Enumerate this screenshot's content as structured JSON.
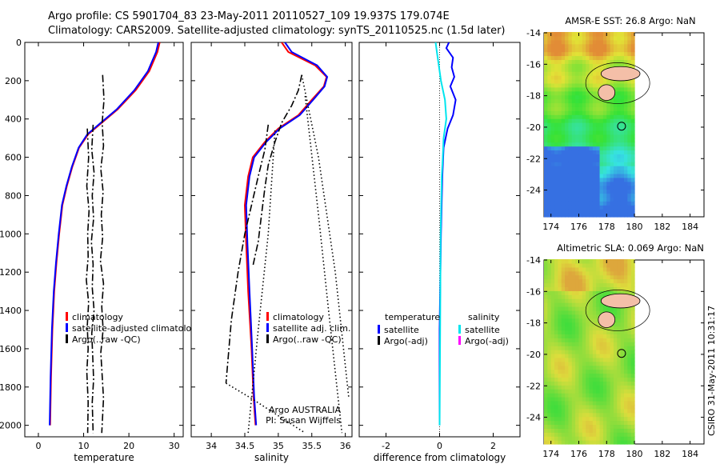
{
  "header": {
    "line1": "Argo profile: CS 5901704_83 23-May-2011 20110527_109 19.937S 179.074E",
    "line2": "Climatology: CARS2009. Satellite-adjusted climatology: synTS_20110525.nc (1.5d later)"
  },
  "chart_data": [
    {
      "type": "line",
      "panel": "temperature",
      "xlabel": "temperature",
      "xlim": [
        -3,
        32
      ],
      "ylim": [
        2060,
        0
      ],
      "xticks": [
        0,
        10,
        20,
        30
      ],
      "yticks": [
        0,
        200,
        400,
        600,
        800,
        1000,
        1200,
        1400,
        1600,
        1800,
        2000
      ],
      "legend": [
        "climatology",
        "satellite-adjusted climatology",
        "Argo(..raw -QC)"
      ],
      "series": [
        {
          "name": "climatology",
          "color": "#ff0000",
          "x": [
            26.8,
            26.3,
            24.5,
            21.5,
            17.5,
            14.0,
            11.0,
            9.0,
            7.5,
            6.3,
            5.3,
            4.6,
            4.0,
            3.5,
            3.1,
            2.8,
            2.6
          ],
          "y": [
            0,
            50,
            150,
            250,
            350,
            420,
            480,
            550,
            650,
            750,
            850,
            1000,
            1150,
            1300,
            1500,
            1750,
            2000
          ]
        },
        {
          "name": "satellite-adjusted climatology",
          "color": "#0000ff",
          "x": [
            26.5,
            26.0,
            24.2,
            21.2,
            17.3,
            13.8,
            10.8,
            8.9,
            7.4,
            6.2,
            5.2,
            4.5,
            3.9,
            3.4,
            3.0,
            2.7,
            2.5
          ],
          "y": [
            0,
            50,
            150,
            250,
            350,
            420,
            480,
            550,
            650,
            750,
            850,
            1000,
            1150,
            1300,
            1500,
            1750,
            2000
          ]
        },
        {
          "name": "Argo(..raw -QC)",
          "color": "#000000",
          "style": "dashdot",
          "x": [
            14.2,
            14.5,
            14.1,
            14.4,
            13.8,
            14.3,
            13.9,
            14.2,
            13.7,
            14.4,
            14.0,
            14.3,
            13.8,
            14.1,
            14.4,
            14.0
          ],
          "y": [
            170,
            300,
            420,
            540,
            660,
            780,
            900,
            1020,
            1140,
            1260,
            1380,
            1500,
            1620,
            1740,
            1860,
            2040
          ]
        },
        {
          "name": "Argo(..raw -QC)",
          "color": "#000000",
          "style": "dashdot",
          "x": [
            12.1,
            11.8,
            12.3,
            11.9,
            12.2,
            11.7,
            12.1,
            11.9,
            12.3,
            11.8,
            12.0,
            12.2,
            11.9,
            12.1
          ],
          "y": [
            430,
            560,
            680,
            800,
            920,
            1040,
            1160,
            1280,
            1400,
            1520,
            1640,
            1760,
            1880,
            2040
          ]
        },
        {
          "name": "Argo(..raw -QC)",
          "color": "#000000",
          "style": "dashdot",
          "x": [
            10.8,
            11.1,
            10.7,
            11.2,
            10.9,
            11.0,
            10.6,
            11.1,
            10.8,
            11.0,
            10.7,
            11.0,
            10.9
          ],
          "y": [
            450,
            600,
            750,
            880,
            1000,
            1120,
            1240,
            1360,
            1480,
            1600,
            1720,
            1880,
            2040
          ]
        }
      ]
    },
    {
      "type": "line",
      "panel": "salinity",
      "xlabel": "salinity",
      "xlim": [
        33.7,
        36.1
      ],
      "ylim": [
        2060,
        0
      ],
      "xticks": [
        34,
        34.5,
        35,
        35.5,
        36
      ],
      "legend": [
        "climatology",
        "satellite adj. clim.",
        "Argo(..raw -QC)"
      ],
      "annotation": [
        "Argo AUSTRALIA",
        "PI: Susan Wijffels"
      ],
      "series": [
        {
          "name": "climatology",
          "color": "#ff0000",
          "x": [
            35.05,
            35.15,
            35.55,
            35.72,
            35.68,
            35.5,
            35.3,
            35.0,
            34.8,
            34.62,
            34.55,
            34.5,
            34.52,
            34.55,
            34.6,
            34.63,
            34.66
          ],
          "y": [
            0,
            50,
            120,
            180,
            230,
            300,
            380,
            450,
            520,
            600,
            700,
            850,
            1050,
            1300,
            1600,
            1850,
            2000
          ]
        },
        {
          "name": "satellite adj. clim.",
          "color": "#0000ff",
          "x": [
            35.1,
            35.2,
            35.58,
            35.73,
            35.69,
            35.52,
            35.32,
            35.02,
            34.82,
            34.64,
            34.57,
            34.52,
            34.54,
            34.57,
            34.61,
            34.64,
            34.67
          ],
          "y": [
            0,
            50,
            120,
            180,
            230,
            300,
            380,
            450,
            520,
            600,
            700,
            850,
            1050,
            1300,
            1600,
            1850,
            2000
          ]
        },
        {
          "name": "Argo(..raw -QC)",
          "color": "#000000",
          "style": "dashdot",
          "x": [
            35.35,
            35.3,
            35.2,
            35.05,
            34.95,
            34.85,
            34.8,
            34.75,
            34.7,
            34.62
          ],
          "y": [
            170,
            250,
            330,
            420,
            520,
            640,
            760,
            900,
            1040,
            1170
          ]
        },
        {
          "name": "Argo(..raw -QC)",
          "color": "#000000",
          "style": "dashdot",
          "x": [
            34.85,
            34.8,
            34.7,
            34.6,
            34.5,
            34.4,
            34.3,
            34.22
          ],
          "y": [
            430,
            560,
            700,
            850,
            1000,
            1200,
            1450,
            1780
          ]
        },
        {
          "name": "Argo(..raw -QC)",
          "color": "#000000",
          "style": "dotted",
          "x": [
            35.35,
            35.6,
            35.85,
            36.05
          ],
          "y": [
            170,
            600,
            1200,
            1850
          ]
        },
        {
          "name": "Argo(..raw -QC)",
          "color": "#000000",
          "style": "dotted",
          "x": [
            35.4,
            35.6,
            35.75,
            35.95
          ],
          "y": [
            280,
            900,
            1400,
            2040
          ]
        },
        {
          "name": "Argo(..raw -QC)",
          "color": "#000000",
          "style": "dotted",
          "x": [
            34.22,
            34.6,
            35.0,
            35.4
          ],
          "y": [
            1780,
            1860,
            1950,
            2040
          ]
        },
        {
          "name": "Argo(..raw -QC)",
          "color": "#000000",
          "style": "dotted",
          "x": [
            34.95,
            34.85,
            34.7,
            34.55
          ],
          "y": [
            460,
            1000,
            1500,
            2040
          ]
        }
      ]
    },
    {
      "type": "line",
      "panel": "difference",
      "xlabel": "difference from climatology",
      "xlim": [
        -3,
        3
      ],
      "ylim": [
        2060,
        0
      ],
      "xticks": [
        -2,
        0,
        2
      ],
      "legend_left_title": "temperature",
      "legend_right_title": "salinity",
      "legend": [
        "satellite",
        "Argo(-adj)",
        "satellite",
        "Argo(-adj)"
      ],
      "series": [
        {
          "name": "satellite",
          "quantity": "temperature",
          "color": "#0000ff",
          "x": [
            0.35,
            0.25,
            0.5,
            0.45,
            0.55,
            0.4,
            0.6,
            0.5,
            0.3,
            0.15,
            0.1,
            0.05,
            0.0,
            0.0
          ],
          "y": [
            0,
            30,
            80,
            130,
            180,
            230,
            300,
            380,
            450,
            550,
            700,
            1000,
            1500,
            2000
          ]
        },
        {
          "name": "satellite",
          "quantity": "salinity",
          "color": "#00e5ee",
          "x": [
            -0.15,
            -0.1,
            -0.05,
            0.05,
            0.2,
            0.25,
            0.15,
            0.12,
            0.08,
            0.06,
            0.04,
            0.02,
            0.0
          ],
          "y": [
            0,
            50,
            100,
            200,
            300,
            400,
            500,
            600,
            700,
            850,
            1000,
            1500,
            2000
          ]
        }
      ]
    },
    {
      "type": "heatmap",
      "panel": "map-sst",
      "title": "AMSR-E SST: 26.8 Argo: NaN",
      "xlim": [
        173.5,
        185
      ],
      "ylim": [
        -25.7,
        -14
      ],
      "xticks": [
        174,
        176,
        178,
        180,
        182,
        184
      ],
      "yticks": [
        -14,
        -16,
        -18,
        -20,
        -22,
        -24
      ],
      "data_extent_lon_max": 180,
      "float_position": {
        "lon": 179.074,
        "lat": -19.937
      }
    },
    {
      "type": "heatmap",
      "panel": "map-sla",
      "title": "Altimetric SLA: 0.069 Argo: NaN",
      "xlim": [
        173.5,
        185
      ],
      "ylim": [
        -25.7,
        -14
      ],
      "xticks": [
        174,
        176,
        178,
        180,
        182,
        184
      ],
      "yticks": [
        -14,
        -16,
        -18,
        -20,
        -22,
        -24
      ],
      "data_extent_lon_max": 180,
      "float_position": {
        "lon": 179.074,
        "lat": -19.937
      }
    }
  ],
  "footer_vertical": "CSIRO 31-May-2011 10:31:17"
}
